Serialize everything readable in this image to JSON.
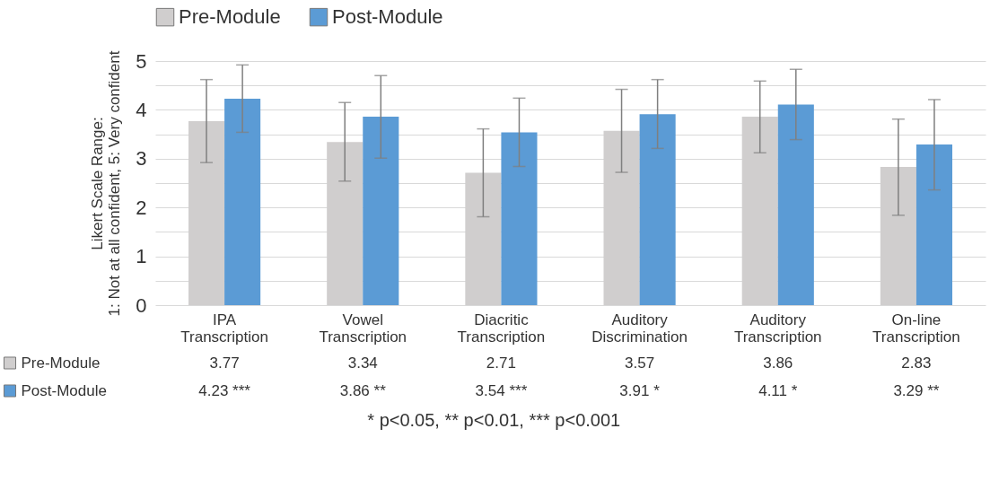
{
  "chart_data": {
    "type": "bar",
    "ylabel": "Likert Scale Range:\n1: Not at all confident, 5: Very confident",
    "categories": [
      "IPA\nTranscription",
      "Vowel\nTranscription",
      "Diacritic\nTranscription",
      "Auditory\nDiscrimination",
      "Auditory\nTranscription",
      "On-line\nTranscription"
    ],
    "series": [
      {
        "name": "Pre-Module",
        "color": "#d0cece",
        "values": [
          3.77,
          3.34,
          2.71,
          3.57,
          3.86,
          2.83
        ],
        "value_labels": [
          "3.77",
          "3.34",
          "2.71",
          "3.57",
          "3.86",
          "2.83"
        ],
        "errors": [
          [
            2.92,
            4.62
          ],
          [
            2.54,
            4.15
          ],
          [
            1.81,
            3.61
          ],
          [
            2.72,
            4.42
          ],
          [
            3.12,
            4.59
          ],
          [
            1.84,
            3.81
          ]
        ]
      },
      {
        "name": "Post-Module",
        "color": "#5b9bd5",
        "values": [
          4.23,
          3.86,
          3.54,
          3.91,
          4.11,
          3.29
        ],
        "value_labels": [
          "4.23 ***",
          "3.86 **",
          "3.54 ***",
          "3.91 *",
          "4.11 *",
          "3.29 **"
        ],
        "errors": [
          [
            3.54,
            4.92
          ],
          [
            3.01,
            4.7
          ],
          [
            2.84,
            4.24
          ],
          [
            3.21,
            4.62
          ],
          [
            3.39,
            4.83
          ],
          [
            2.36,
            4.21
          ]
        ]
      }
    ],
    "ylim": [
      0,
      5
    ],
    "yticks": [
      0,
      {
        "value": 0.5,
        "label": null
      },
      1,
      {
        "value": 1.5,
        "label": null
      },
      2,
      {
        "value": 2.5,
        "label": null
      },
      3,
      {
        "value": 3.5,
        "label": null
      },
      4,
      {
        "value": 4.5,
        "label": null
      },
      5
    ],
    "grid": "y",
    "legend": "top",
    "annotations": [
      "* p<0.05, ** p<0.01, *** p<0.001"
    ]
  }
}
